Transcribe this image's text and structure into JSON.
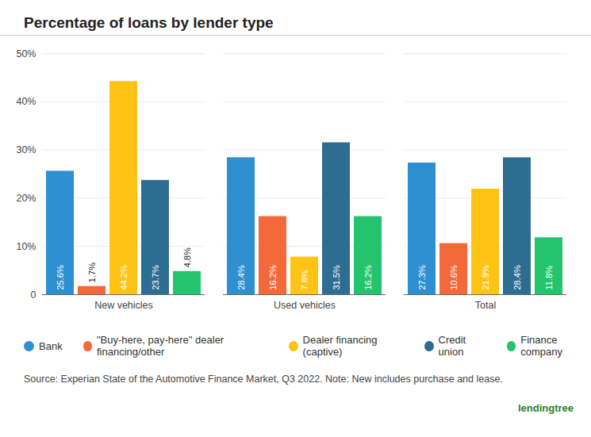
{
  "chart_data": {
    "type": "bar",
    "title": "Percentage of loans by lender type",
    "categories": [
      "New vehicles",
      "Used vehicles",
      "Total"
    ],
    "series": [
      {
        "name": "Bank",
        "color": "#2e8fd1",
        "values": [
          25.6,
          28.4,
          27.3
        ],
        "value_labels": [
          "25.6%",
          "28.4%",
          "27.3%"
        ]
      },
      {
        "name": "\"Buy-here, pay-here\" dealer financing/other",
        "color": "#f4693a",
        "values": [
          1.7,
          16.2,
          10.6
        ],
        "value_labels": [
          "1.7%",
          "16.2%",
          "10.6%"
        ]
      },
      {
        "name": "Dealer financing (captive)",
        "color": "#ffc316",
        "values": [
          44.2,
          7.8,
          21.9
        ],
        "value_labels": [
          "44.2%",
          "7.8%",
          "21.9%"
        ]
      },
      {
        "name": "Credit union",
        "color": "#2e6d92",
        "values": [
          23.7,
          31.5,
          28.4
        ],
        "value_labels": [
          "23.7%",
          "31.5%",
          "28.4%"
        ]
      },
      {
        "name": "Finance company",
        "color": "#24c46e",
        "values": [
          4.8,
          16.2,
          11.8
        ],
        "value_labels": [
          "4.8%",
          "16.2%",
          "11.8%"
        ]
      }
    ],
    "ylim": [
      0,
      50
    ],
    "yticks": [
      0,
      {
        "value": 10,
        "label": "10%"
      },
      {
        "value": 20,
        "label": "20%"
      },
      {
        "value": 30,
        "label": "30%"
      },
      {
        "value": 40,
        "label": "40%"
      },
      {
        "value": 50,
        "label": "50%"
      }
    ],
    "grid": true,
    "data_labels": true,
    "legend": "bottom",
    "caption": "Source: Experian State of the Automotive Finance Market, Q3 2022. Note: New includes purchase and lease.",
    "annotations": [
      "lendingtree"
    ]
  }
}
